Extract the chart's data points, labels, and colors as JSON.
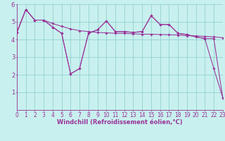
{
  "bg_color": "#c8f0ee",
  "line_color": "#993399",
  "grid_color": "#88cccc",
  "xlabel": "Windchill (Refroidissement éolien,°C)",
  "xlim": [
    0,
    23
  ],
  "ylim": [
    0,
    6
  ],
  "yticks": [
    1,
    2,
    3,
    4,
    5,
    6
  ],
  "xticks": [
    0,
    1,
    2,
    3,
    4,
    5,
    6,
    7,
    8,
    9,
    10,
    11,
    12,
    13,
    14,
    15,
    16,
    17,
    18,
    19,
    20,
    21,
    22,
    23
  ],
  "line1_y": [
    4.4,
    5.7,
    5.1,
    5.1,
    4.9,
    4.75,
    4.6,
    4.5,
    4.45,
    4.4,
    4.38,
    4.35,
    4.35,
    4.32,
    4.3,
    4.3,
    4.28,
    4.27,
    4.25,
    4.22,
    4.2,
    4.18,
    4.15,
    4.1
  ],
  "line2_y": [
    4.4,
    5.7,
    5.1,
    5.1,
    4.7,
    4.35,
    2.05,
    2.35,
    4.35,
    4.55,
    5.05,
    4.45,
    4.45,
    4.4,
    4.45,
    5.35,
    4.85,
    4.85,
    4.35,
    4.28,
    4.15,
    4.05,
    2.35,
    0.7
  ],
  "line3_y": [
    4.4,
    5.7,
    5.1,
    5.1,
    4.7,
    4.35,
    2.05,
    2.35,
    4.35,
    4.55,
    5.05,
    4.45,
    4.45,
    4.4,
    4.45,
    5.35,
    4.85,
    4.85,
    4.35,
    4.28,
    4.15,
    4.05,
    4.05,
    0.7
  ],
  "spine_color": "#993399",
  "tick_labelsize": 5.5,
  "xlabel_fontsize": 6.0,
  "xlabel_fontsize_bold": true
}
